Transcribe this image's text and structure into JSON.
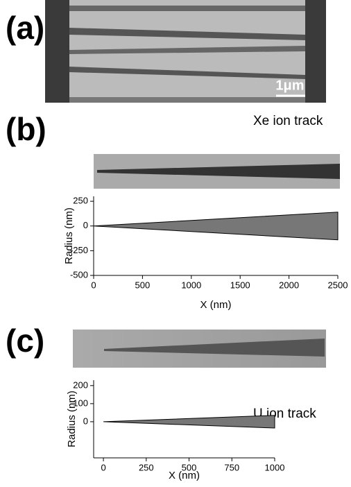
{
  "panel_a": {
    "label": "(a)",
    "scale_bar": "1μm"
  },
  "chart_data": [
    {
      "type": "area",
      "panel_label": "(b)",
      "annotation": "Xe ion track",
      "ylabel": "Radius (nm)",
      "xlabel": "X (nm)",
      "x": [
        0,
        2500
      ],
      "series": [
        {
          "color": "#777777",
          "values": [
            0,
            140
          ]
        },
        {
          "color": "#777777",
          "values": [
            0,
            -140
          ]
        }
      ],
      "xlim": [
        0,
        2500
      ],
      "xticks": [
        0,
        500,
        1000,
        1500,
        2000,
        2500
      ],
      "ylim": [
        -500,
        300
      ],
      "yticks": [
        -500,
        -250,
        0,
        250
      ]
    },
    {
      "type": "area",
      "panel_label": "(c)",
      "annotation": "U ion track",
      "ylabel": "Radius (nm)",
      "xlabel": "X (nm)",
      "x": [
        0,
        1000
      ],
      "series": [
        {
          "color": "#777777",
          "values": [
            0,
            35
          ]
        },
        {
          "color": "#777777",
          "values": [
            0,
            -35
          ]
        }
      ],
      "xlim": [
        -57,
        1000
      ],
      "xticks": [
        0,
        250,
        500,
        750,
        1000
      ],
      "ylim": [
        -200,
        230
      ],
      "yticks": [
        0,
        100,
        200
      ]
    }
  ]
}
